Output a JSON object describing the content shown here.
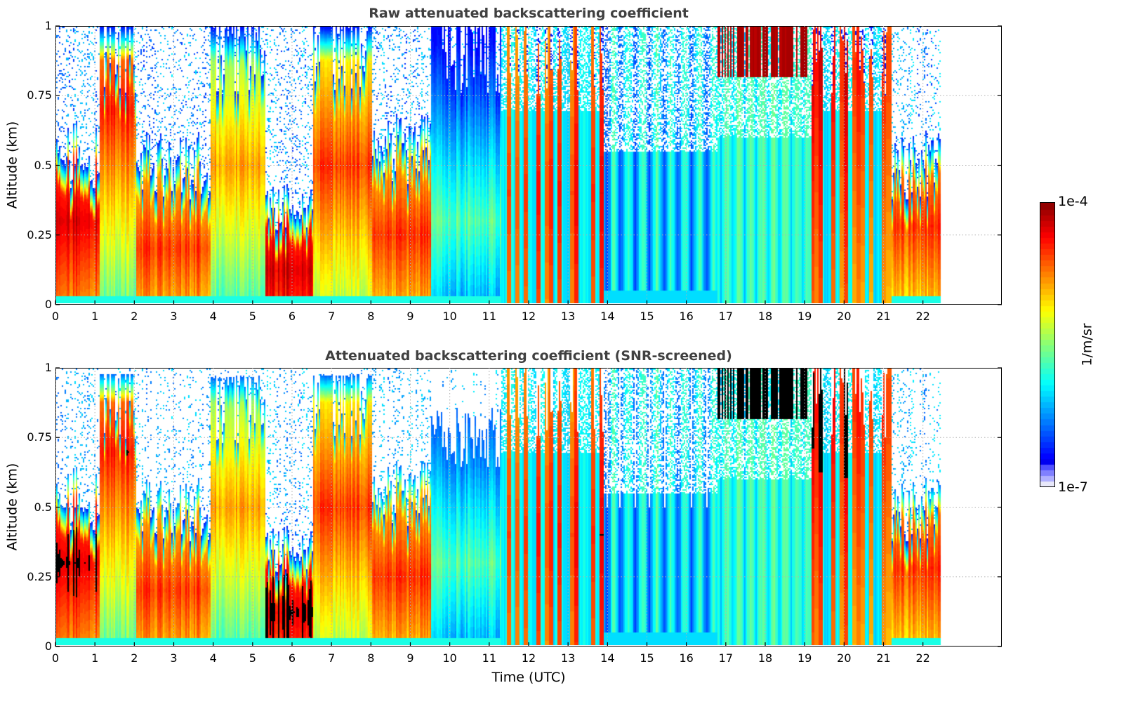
{
  "chart_data": [
    {
      "type": "heatmap",
      "title": "Raw attenuated backscattering coefficient",
      "xlabel": "",
      "ylabel": "Altitude (km)",
      "xlim": [
        0,
        24
      ],
      "ylim": [
        0,
        1
      ],
      "x_ticks": [
        "0",
        "1",
        "2",
        "3",
        "4",
        "5",
        "6",
        "7",
        "8",
        "9",
        "10",
        "11",
        "12",
        "13",
        "14",
        "15",
        "16",
        "17",
        "18",
        "19",
        "20",
        "21",
        "22"
      ],
      "y_ticks": [
        "0",
        "0.25",
        "0.5",
        "0.75",
        "1"
      ],
      "grid": true,
      "screened": false,
      "data_end_hour": 22.45,
      "segments": [
        {
          "t": [
            0.0,
            1.1
          ],
          "top": 0.55,
          "peak": 0.3,
          "level": "very-high"
        },
        {
          "t": [
            1.1,
            2.0
          ],
          "top": 1.0,
          "peak": 0.7,
          "level": "high-descending"
        },
        {
          "t": [
            2.0,
            3.9
          ],
          "top": 0.5,
          "peak": 0.2,
          "level": "high"
        },
        {
          "t": [
            3.9,
            5.3
          ],
          "top": 1.0,
          "peak": 0.5,
          "level": "medium-high"
        },
        {
          "t": [
            5.3,
            6.5
          ],
          "top": 0.35,
          "peak": 0.12,
          "level": "very-high"
        },
        {
          "t": [
            6.5,
            8.0
          ],
          "top": 1.0,
          "peak": 0.5,
          "level": "high"
        },
        {
          "t": [
            8.0,
            9.5
          ],
          "top": 0.55,
          "peak": 0.25,
          "level": "high"
        },
        {
          "t": [
            9.5,
            11.3
          ],
          "top": 1.0,
          "peak": 0.3,
          "level": "low-medium"
        },
        {
          "t": [
            11.3,
            13.9
          ],
          "top": 1.0,
          "peak": 0.4,
          "level": "mixed"
        },
        {
          "t": [
            13.9,
            16.8
          ],
          "top": 1.0,
          "peak": 0.0,
          "level": "low"
        },
        {
          "t": [
            16.8,
            19.2
          ],
          "top": 1.0,
          "peak": 0.95,
          "level": "low-with-upper-cloud"
        },
        {
          "t": [
            19.2,
            21.2
          ],
          "top": 1.0,
          "peak": 0.85,
          "level": "mixed"
        },
        {
          "t": [
            21.2,
            22.45
          ],
          "top": 0.5,
          "peak": 0.28,
          "level": "high"
        }
      ]
    },
    {
      "type": "heatmap",
      "title": "Attenuated backscattering coefficient (SNR-screened)",
      "xlabel": "Time (UTC)",
      "ylabel": "Altitude (km)",
      "xlim": [
        0,
        24
      ],
      "ylim": [
        0,
        1
      ],
      "x_ticks": [
        "0",
        "1",
        "2",
        "3",
        "4",
        "5",
        "6",
        "7",
        "8",
        "9",
        "10",
        "11",
        "12",
        "13",
        "14",
        "15",
        "16",
        "17",
        "18",
        "19",
        "20",
        "21",
        "22"
      ],
      "y_ticks": [
        "0",
        "0.25",
        "0.5",
        "0.75",
        "1"
      ],
      "grid": true,
      "screened": true,
      "saturation_color": "#000000",
      "data_end_hour": 22.45
    }
  ],
  "colorbar": {
    "min_label": "1e-7",
    "max_label": "1e-4",
    "unit": "1/m/sr",
    "colormap": "jet",
    "low_end_colors": [
      "#e8e8fa",
      "#b0b0ff",
      "#8080ff",
      "#5050ff"
    ]
  }
}
